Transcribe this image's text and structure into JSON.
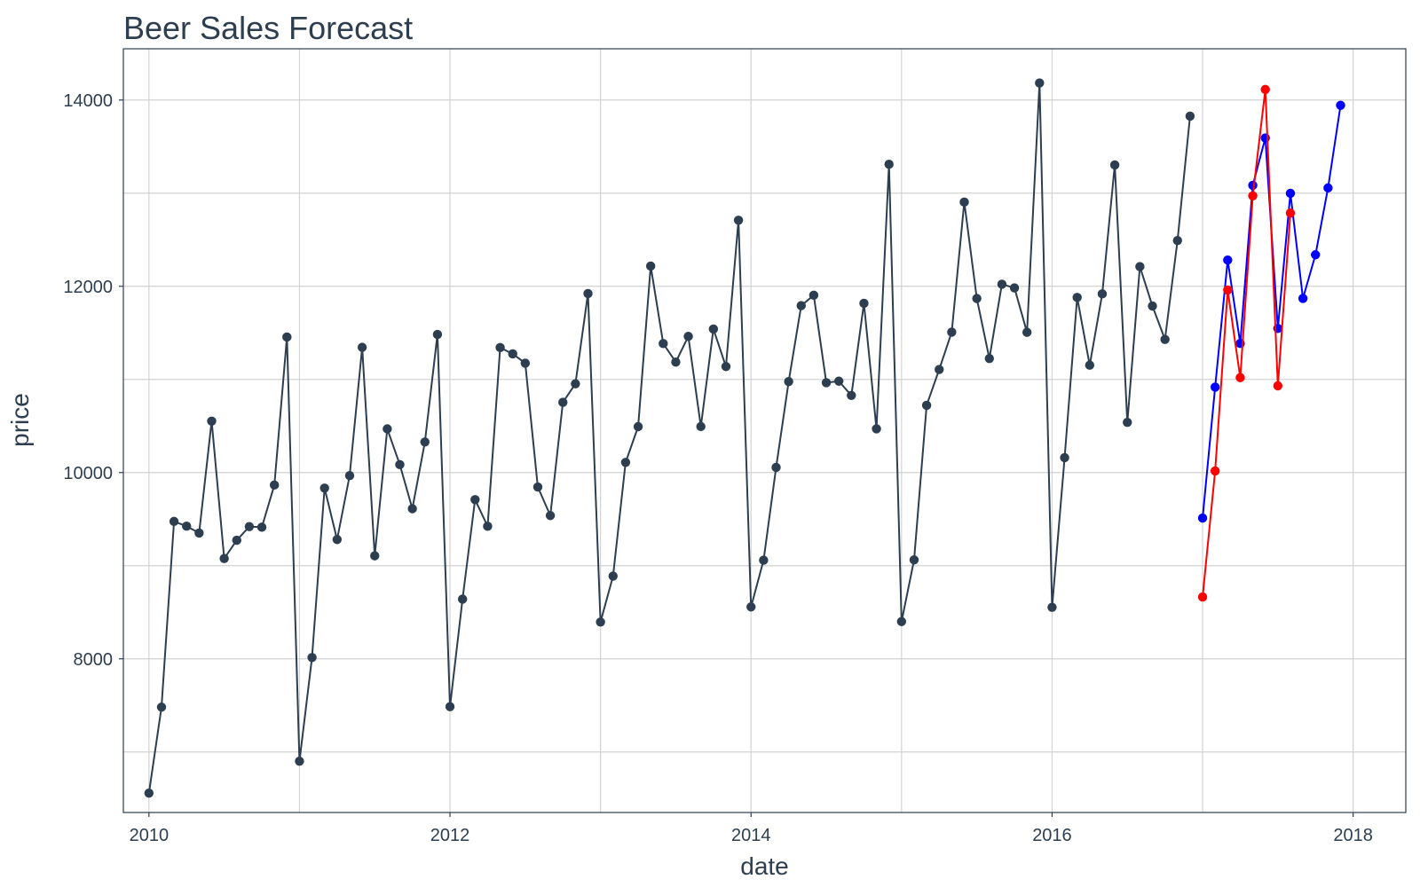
{
  "chart_data": {
    "type": "line",
    "title": "Beer Sales Forecast",
    "xlabel": "date",
    "ylabel": "price",
    "xlim": [
      2009.83,
      2018.35
    ],
    "ylim": [
      6350,
      14550
    ],
    "x_ticks": [
      2010,
      2012,
      2014,
      2016,
      2018
    ],
    "y_ticks": [
      8000,
      10000,
      12000,
      14000
    ],
    "grid": true,
    "legend": "none",
    "series": [
      {
        "color": "#2c3e50",
        "start": "2010-01",
        "values": [
          6558,
          7481,
          9475,
          9424,
          9351,
          10552,
          9077,
          9273,
          9420,
          9413,
          9866,
          11455,
          6901,
          8014,
          9833,
          9281,
          9967,
          11344,
          9106,
          10469,
          10085,
          9612,
          10328,
          11483,
          7486,
          8641,
          9709,
          9423,
          11342,
          11274,
          11174,
          9845,
          9538,
          10754,
          10953,
          11922,
          8395,
          8888,
          10109,
          10493,
          12217,
          11385,
          11186,
          11462,
          10494,
          11541,
          11138,
          12709,
          8557,
          9059,
          10055,
          10977,
          11792,
          11904,
          10965,
          10981,
          10828,
          11817,
          10470,
          13310,
          8400,
          9062,
          10722,
          11107,
          11508,
          12904,
          11869,
          11224,
          12022,
          11983,
          11506,
          14183,
          8553,
          10160,
          11880,
          11153,
          11918,
          13303,
          10539,
          12211,
          11788,
          11429,
          12491,
          13827
        ]
      },
      {
        "color": "#0000ff",
        "start": "2017-01",
        "values": [
          9511,
          10917,
          12281,
          11386,
          13084,
          13592,
          11547,
          12998,
          11870,
          12338,
          13056,
          13943
        ]
      },
      {
        "color": "#ff0000",
        "start": "2017-01",
        "values": [
          8664,
          10017,
          11960,
          11019,
          12971,
          14113,
          10931,
          12786
        ]
      }
    ]
  }
}
